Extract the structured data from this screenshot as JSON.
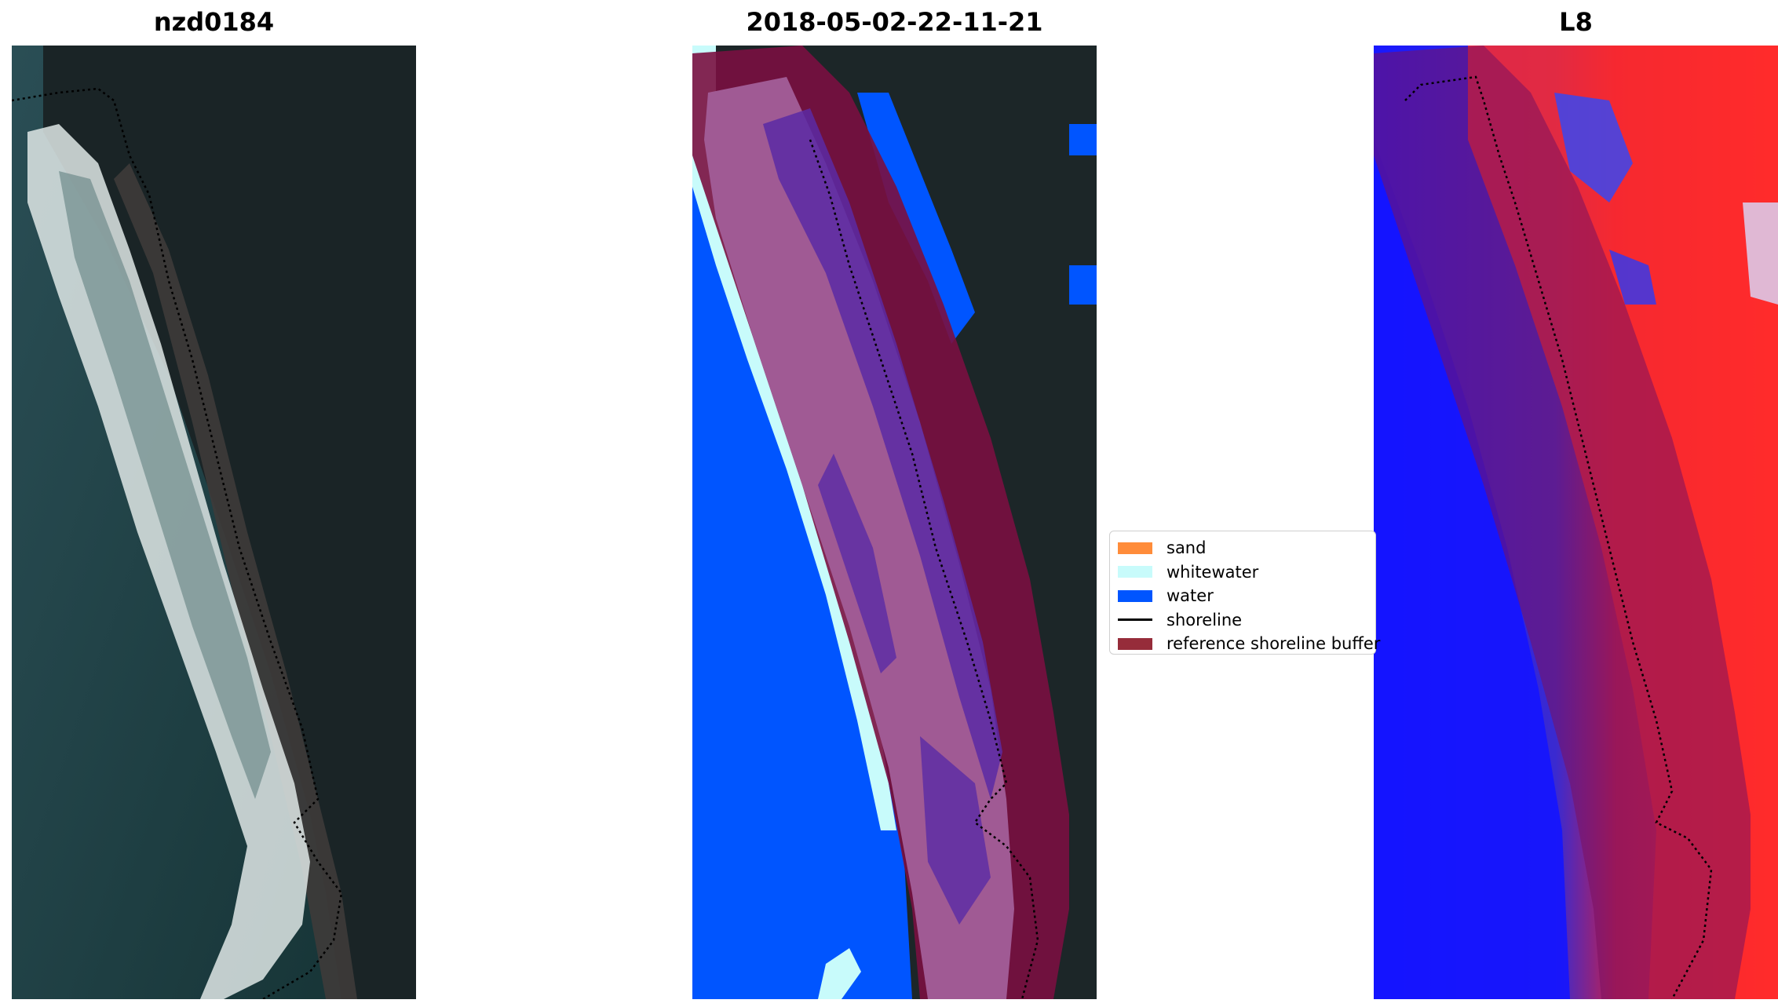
{
  "panels": [
    {
      "title": "nzd0184"
    },
    {
      "title": "2018-05-02-22-11-21"
    },
    {
      "title": "L8"
    }
  ],
  "legend": {
    "items": [
      {
        "label": "sand",
        "color": "#ff8c3a"
      },
      {
        "label": "whitewater",
        "color": "#c8fbfb"
      },
      {
        "label": "water",
        "color": "#0055ff"
      },
      {
        "label": "shoreline",
        "color": "#000000"
      },
      {
        "label": "reference shoreline buffer",
        "color": "#962c3a"
      }
    ]
  },
  "colors": {
    "land_dark": "#1c2628",
    "sea": "#1f4548",
    "surf": "#dfe7e6",
    "class_sand_overlay": "#a05a94",
    "class_sand_dark": "#5a2aa5",
    "buffer": "#7a1040",
    "mndwi_positive": "#ff2020",
    "mndwi_negative": "#1818ff"
  }
}
